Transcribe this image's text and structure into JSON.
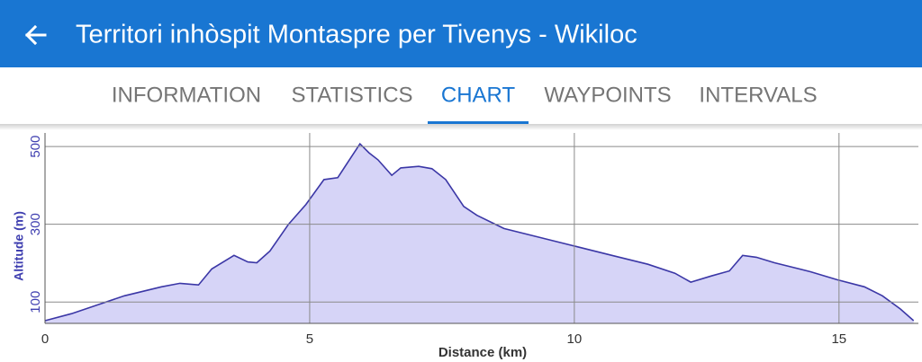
{
  "header": {
    "title": "Territori inhòspit Montaspre per Tivenys - Wikiloc"
  },
  "tabs": [
    {
      "label": "INFORMATION",
      "selected": false
    },
    {
      "label": "STATISTICS",
      "selected": false
    },
    {
      "label": "CHART",
      "selected": true
    },
    {
      "label": "WAYPOINTS",
      "selected": false
    },
    {
      "label": "INTERVALS",
      "selected": false
    }
  ],
  "chart_data": {
    "type": "area",
    "x_label": "Distance (km)",
    "y_label": "Altitude (m)",
    "x": [
      0,
      0.5,
      1.0,
      1.5,
      2.2,
      2.55,
      2.9,
      3.15,
      3.57,
      3.83,
      4.0,
      4.25,
      4.6,
      4.93,
      5.27,
      5.53,
      5.78,
      5.95,
      6.12,
      6.29,
      6.55,
      6.72,
      7.06,
      7.31,
      7.57,
      7.91,
      8.16,
      8.67,
      9.35,
      10.03,
      10.71,
      11.39,
      11.9,
      12.2,
      12.59,
      12.93,
      13.18,
      13.44,
      13.78,
      14.46,
      14.97,
      15.48,
      15.82,
      16.16,
      16.41
    ],
    "values": [
      52,
      70,
      93,
      116,
      139,
      148,
      144,
      185,
      220,
      203,
      201,
      231,
      300,
      351,
      415,
      420,
      472,
      507,
      484,
      466,
      426,
      445,
      449,
      443,
      415,
      346,
      323,
      289,
      266,
      243,
      220,
      197,
      174,
      151,
      167,
      180,
      220,
      215,
      201,
      178,
      157,
      139,
      116,
      82,
      52
    ],
    "color": "#3b37a6",
    "fill": "#d6d4f7",
    "xlim": [
      0,
      16.5
    ],
    "ylim": [
      45,
      535
    ],
    "xticks": [
      0,
      5,
      10,
      15
    ],
    "yticks": [
      100,
      300,
      500
    ],
    "grid": true
  }
}
